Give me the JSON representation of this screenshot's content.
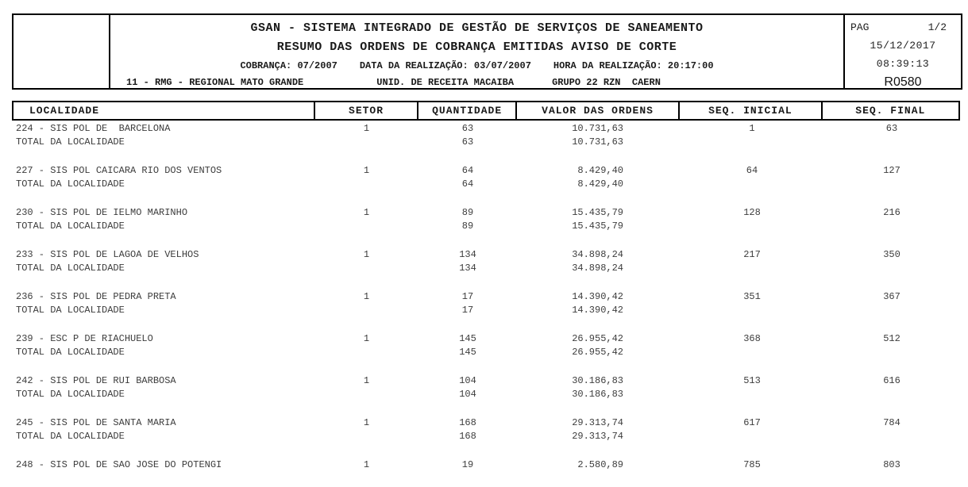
{
  "report": {
    "title1": "GSAN - SISTEMA INTEGRADO DE GESTÃO DE SERVIÇOS DE SANEAMENTO",
    "title2": "RESUMO DAS ORDENS DE COBRANÇA EMITIDAS AVISO DE CORTE",
    "cobranca": "COBRANÇA: 07/2007",
    "data_realizacao": "DATA DA REALIZAÇÃO: 03/07/2007",
    "hora_realizacao": "HORA DA REALIZAÇÃO: 20:17:00",
    "regional": "11 - RMG - REGIONAL MATO GRANDE",
    "unidade_receita": "UNID. DE RECEITA MACAIBA",
    "grupo": "GRUPO 22 RZN  CAERN",
    "page": {
      "label": "PAG",
      "value": "1/2",
      "date": "15/12/2017",
      "time": "08:39:13",
      "report_code": "R0580"
    }
  },
  "table": {
    "columns": [
      "LOCALIDADE",
      "SETOR",
      "QUANTIDADE",
      "VALOR DAS ORDENS",
      "SEQ. INICIAL",
      "SEQ. FINAL"
    ],
    "total_label": "TOTAL DA LOCALIDADE",
    "groups": [
      {
        "localidade": "224 - SIS POL DE  BARCELONA",
        "setor": "1",
        "quantidade": "63",
        "valor": "10.731,63",
        "seq_inicial": "1",
        "seq_final": "63",
        "total": {
          "quantidade": "63",
          "valor": "10.731,63"
        }
      },
      {
        "localidade": "227 - SIS POL CAICARA RIO DOS VENTOS",
        "setor": "1",
        "quantidade": "64",
        "valor": "8.429,40",
        "seq_inicial": "64",
        "seq_final": "127",
        "total": {
          "quantidade": "64",
          "valor": "8.429,40"
        }
      },
      {
        "localidade": "230 - SIS POL DE IELMO MARINHO",
        "setor": "1",
        "quantidade": "89",
        "valor": "15.435,79",
        "seq_inicial": "128",
        "seq_final": "216",
        "total": {
          "quantidade": "89",
          "valor": "15.435,79"
        }
      },
      {
        "localidade": "233 - SIS POL DE LAGOA DE VELHOS",
        "setor": "1",
        "quantidade": "134",
        "valor": "34.898,24",
        "seq_inicial": "217",
        "seq_final": "350",
        "total": {
          "quantidade": "134",
          "valor": "34.898,24"
        }
      },
      {
        "localidade": "236 - SIS POL DE PEDRA PRETA",
        "setor": "1",
        "quantidade": "17",
        "valor": "14.390,42",
        "seq_inicial": "351",
        "seq_final": "367",
        "total": {
          "quantidade": "17",
          "valor": "14.390,42"
        }
      },
      {
        "localidade": "239 - ESC P DE RIACHUELO",
        "setor": "1",
        "quantidade": "145",
        "valor": "26.955,42",
        "seq_inicial": "368",
        "seq_final": "512",
        "total": {
          "quantidade": "145",
          "valor": "26.955,42"
        }
      },
      {
        "localidade": "242 - SIS POL DE RUI BARBOSA",
        "setor": "1",
        "quantidade": "104",
        "valor": "30.186,83",
        "seq_inicial": "513",
        "seq_final": "616",
        "total": {
          "quantidade": "104",
          "valor": "30.186,83"
        }
      },
      {
        "localidade": "245 - SIS POL DE SANTA MARIA",
        "setor": "1",
        "quantidade": "168",
        "valor": "29.313,74",
        "seq_inicial": "617",
        "seq_final": "784",
        "total": {
          "quantidade": "168",
          "valor": "29.313,74"
        }
      },
      {
        "localidade": "248 - SIS POL DE SAO JOSE DO POTENGI",
        "setor": "1",
        "quantidade": "19",
        "valor": "2.580,89",
        "seq_inicial": "785",
        "seq_final": "803",
        "total": null
      }
    ]
  },
  "colors": {
    "border": "#000000",
    "body_text": "#3d3d3d",
    "heading_text": "#1a1a1a",
    "background": "#ffffff"
  }
}
